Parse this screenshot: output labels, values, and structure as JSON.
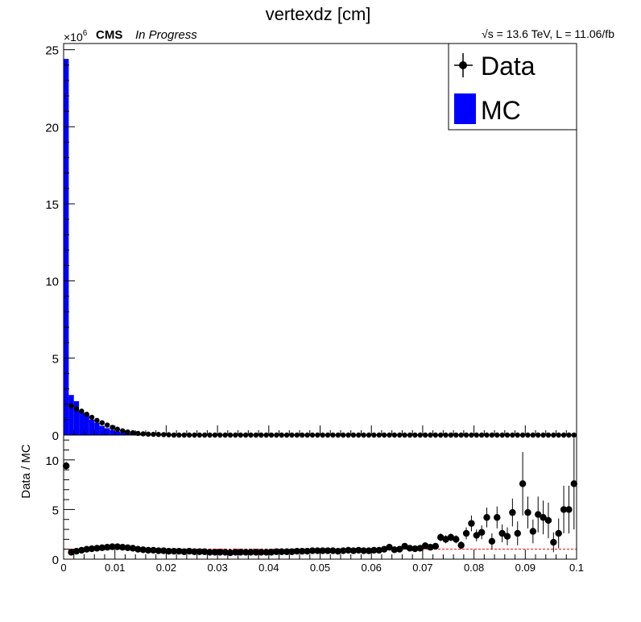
{
  "title": "vertexdz [cm]",
  "header": {
    "cms": "CMS",
    "status": "In Progress",
    "energy_lumi": "√s = 13.6 TeV, L = 11.06/fb",
    "exponent_prefix": "×10",
    "exponent_power": "6"
  },
  "legend": {
    "items": [
      {
        "label": "Data",
        "style": "marker",
        "color": "#000000"
      },
      {
        "label": "MC",
        "style": "fill",
        "color": "#0000ff"
      }
    ]
  },
  "colors": {
    "mc_fill": "#0000ff",
    "data": "#000000",
    "ratio_line": "#ff0000"
  },
  "chart_data": [
    {
      "type": "bar",
      "panel": "main",
      "title": "vertexdz [cm]",
      "xlim": [
        0,
        0.1
      ],
      "ylim": [
        0,
        25.4
      ],
      "y_multiplier": "×10^6",
      "yticks": [
        "0",
        "5",
        "10",
        "15",
        "20",
        "25"
      ],
      "bin_width": 0.001,
      "series": [
        {
          "name": "MC",
          "style": "filled-histogram",
          "values": [
            24.4,
            2.6,
            2.2,
            1.6,
            1.3,
            1.0,
            0.8,
            0.6,
            0.45,
            0.33,
            0.24,
            0.18,
            0.13,
            0.1,
            0.08,
            0.06,
            0.05,
            0.04,
            0.03,
            0.025
          ]
        },
        {
          "name": "Data",
          "style": "markers",
          "values": [
            1.9,
            1.7,
            1.55,
            1.35,
            1.15,
            0.95,
            0.8,
            0.65,
            0.5,
            0.38,
            0.28,
            0.2,
            0.15,
            0.11,
            0.08,
            0.06,
            0.05,
            0.04,
            0.03,
            0.02
          ]
        }
      ],
      "tail_value": 0.0
    },
    {
      "type": "scatter",
      "panel": "ratio",
      "ylabel": "Data / MC",
      "xlim": [
        0,
        0.1
      ],
      "ylim": [
        0,
        12.5
      ],
      "yticks": [
        "0",
        "5",
        "10"
      ],
      "xticks": [
        "0",
        "0.01",
        "0.02",
        "0.03",
        "0.04",
        "0.05",
        "0.06",
        "0.07",
        "0.08",
        "0.09",
        "0.1"
      ],
      "reference_line": 1,
      "x": [
        0.0005,
        0.0015,
        0.0025,
        0.0035,
        0.0045,
        0.0055,
        0.0065,
        0.0075,
        0.0085,
        0.0095,
        0.0105,
        0.0115,
        0.0125,
        0.0135,
        0.0145,
        0.0155,
        0.0165,
        0.0175,
        0.0185,
        0.0195,
        0.0205,
        0.0215,
        0.0225,
        0.0235,
        0.0245,
        0.0255,
        0.0265,
        0.0275,
        0.0285,
        0.0295,
        0.0305,
        0.0315,
        0.0325,
        0.0335,
        0.0345,
        0.0355,
        0.0365,
        0.0375,
        0.0385,
        0.0395,
        0.0405,
        0.0415,
        0.0425,
        0.0435,
        0.0445,
        0.0455,
        0.0465,
        0.0475,
        0.0485,
        0.0495,
        0.0505,
        0.0515,
        0.0525,
        0.0535,
        0.0545,
        0.0555,
        0.0565,
        0.0575,
        0.0585,
        0.0595,
        0.0605,
        0.0615,
        0.0625,
        0.0635,
        0.0645,
        0.0655,
        0.0665,
        0.0675,
        0.0685,
        0.0695,
        0.0705,
        0.0715,
        0.0725,
        0.0735,
        0.0745,
        0.0755,
        0.0765,
        0.0775,
        0.0785,
        0.0795,
        0.0805,
        0.0815,
        0.0825,
        0.0835,
        0.0845,
        0.0855,
        0.0865,
        0.0875,
        0.0885,
        0.0895,
        0.0905,
        0.0915,
        0.0925,
        0.0935,
        0.0945,
        0.0955,
        0.0965,
        0.0975,
        0.0985,
        0.0995
      ],
      "y": [
        9.4,
        0.7,
        0.8,
        0.9,
        1.0,
        1.05,
        1.1,
        1.15,
        1.2,
        1.25,
        1.25,
        1.2,
        1.15,
        1.1,
        1.0,
        0.95,
        0.9,
        0.9,
        0.85,
        0.85,
        0.8,
        0.8,
        0.8,
        0.75,
        0.8,
        0.75,
        0.75,
        0.75,
        0.7,
        0.7,
        0.7,
        0.7,
        0.65,
        0.7,
        0.7,
        0.7,
        0.7,
        0.7,
        0.7,
        0.7,
        0.7,
        0.75,
        0.75,
        0.75,
        0.75,
        0.8,
        0.8,
        0.8,
        0.85,
        0.85,
        0.85,
        0.85,
        0.85,
        0.8,
        0.85,
        0.9,
        0.85,
        0.9,
        0.85,
        0.85,
        0.9,
        0.9,
        1.0,
        1.2,
        0.95,
        1.0,
        1.3,
        1.1,
        1.05,
        1.1,
        1.35,
        1.2,
        1.3,
        2.2,
        2.0,
        2.2,
        2.0,
        1.4,
        2.6,
        3.6,
        2.4,
        2.7,
        4.2,
        1.8,
        4.2,
        2.6,
        2.3,
        4.7,
        2.6,
        7.6,
        4.7,
        2.8,
        4.5,
        4.2,
        3.9,
        1.7,
        2.6,
        5.0,
        5.0,
        7.6
      ],
      "err": [
        0.4,
        0.05,
        0.05,
        0.05,
        0.05,
        0.05,
        0.05,
        0.05,
        0.05,
        0.05,
        0.05,
        0.05,
        0.05,
        0.05,
        0.05,
        0.05,
        0.05,
        0.05,
        0.05,
        0.05,
        0.05,
        0.05,
        0.05,
        0.05,
        0.05,
        0.05,
        0.05,
        0.05,
        0.05,
        0.05,
        0.05,
        0.05,
        0.05,
        0.05,
        0.05,
        0.05,
        0.05,
        0.05,
        0.05,
        0.05,
        0.05,
        0.05,
        0.05,
        0.05,
        0.05,
        0.05,
        0.05,
        0.05,
        0.05,
        0.05,
        0.05,
        0.05,
        0.05,
        0.05,
        0.05,
        0.05,
        0.05,
        0.05,
        0.05,
        0.05,
        0.1,
        0.1,
        0.1,
        0.15,
        0.1,
        0.15,
        0.15,
        0.15,
        0.15,
        0.15,
        0.2,
        0.2,
        0.2,
        0.4,
        0.4,
        0.4,
        0.4,
        0.4,
        0.6,
        0.8,
        0.6,
        0.7,
        1.0,
        0.8,
        1.1,
        0.9,
        0.9,
        1.4,
        1.2,
        3.2,
        1.6,
        1.2,
        1.8,
        1.7,
        1.8,
        1.0,
        1.5,
        2.4,
        2.4,
        4.6
      ]
    }
  ]
}
